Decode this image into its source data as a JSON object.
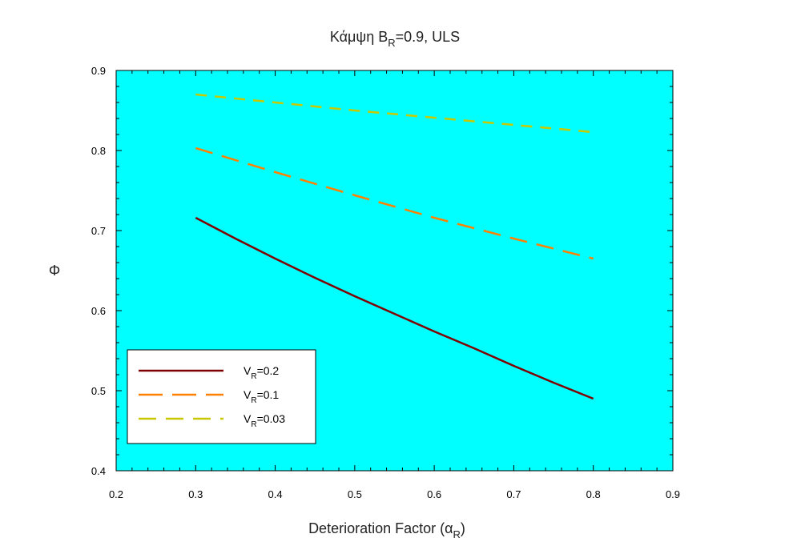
{
  "chart_data": {
    "type": "line",
    "title": {
      "main": "Κάμψη B",
      "sub": "R",
      "rest": "=0.9, ULS"
    },
    "xlabel": {
      "main": "Deterioration Factor (α",
      "sub": "R",
      "rest": ")"
    },
    "ylabel": "Φ",
    "xlim": [
      0.2,
      0.9
    ],
    "ylim": [
      0.4,
      0.9
    ],
    "x_ticks": [
      "0.2",
      "0.3",
      "0.4",
      "0.5",
      "0.6",
      "0.7",
      "0.8",
      "0.9"
    ],
    "y_ticks": [
      "0.4",
      "0.5",
      "0.6",
      "0.7",
      "0.8",
      "0.9"
    ],
    "background": "#00ffff",
    "grid": false,
    "legend_position": "bottom-left",
    "series": [
      {
        "name": {
          "main": "V",
          "sub": "R",
          "rest": "=0.2"
        },
        "color": "#800000",
        "dash": "solid",
        "x": [
          0.3,
          0.35,
          0.4,
          0.45,
          0.5,
          0.55,
          0.6,
          0.65,
          0.7,
          0.75,
          0.8
        ],
        "y": [
          0.716,
          0.69,
          0.665,
          0.641,
          0.618,
          0.596,
          0.574,
          0.553,
          0.531,
          0.51,
          0.49
        ]
      },
      {
        "name": {
          "main": "V",
          "sub": "R",
          "rest": "=0.1"
        },
        "color": "#ff8000",
        "dash": "long",
        "x": [
          0.3,
          0.4,
          0.5,
          0.6,
          0.7,
          0.8
        ],
        "y": [
          0.803,
          0.773,
          0.744,
          0.716,
          0.69,
          0.665
        ]
      },
      {
        "name": {
          "main": "V",
          "sub": "R",
          "rest": "=0.03"
        },
        "color": "#c8c800",
        "dash": "short",
        "x": [
          0.3,
          0.4,
          0.5,
          0.6,
          0.7,
          0.8
        ],
        "y": [
          0.87,
          0.86,
          0.85,
          0.841,
          0.832,
          0.823
        ]
      }
    ]
  }
}
